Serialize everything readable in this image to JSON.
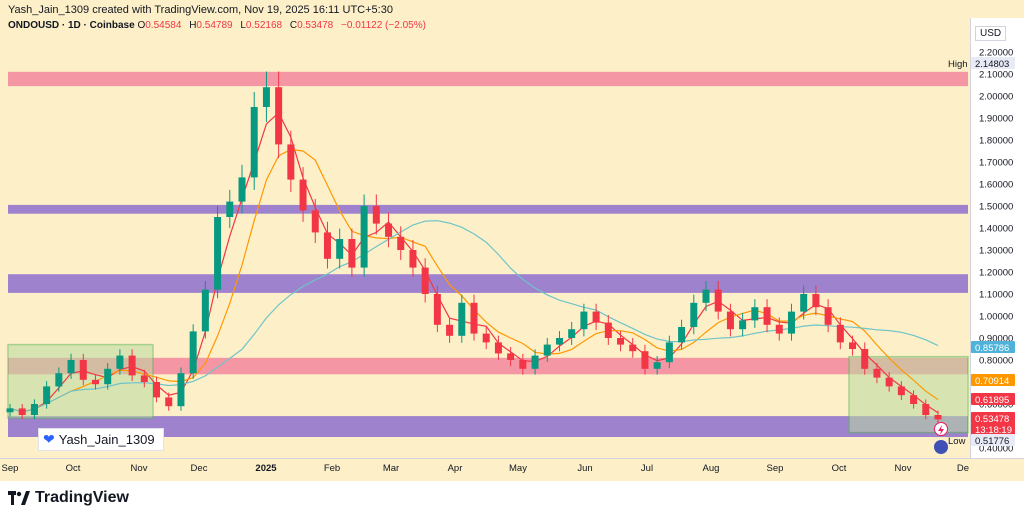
{
  "header": {
    "creator": "Yash_Jain_1309 created with TradingView.com, Nov 19, 2025 16:11 UTC+5:30",
    "symbol": "ONDOUSD · 1D · Coinbase",
    "o_label": "O",
    "o_value": "0.54584",
    "h_label": "H",
    "h_value": "0.54789",
    "l_label": "L",
    "l_value": "0.52168",
    "c_label": "C",
    "c_value": "0.53478",
    "change": "−0.01122 (−2.05%)"
  },
  "axis": {
    "currency": "USD",
    "high_label": "High",
    "low_label": "Low"
  },
  "watermark": "Yash_Jain_1309",
  "brand": "TradingView",
  "colors": {
    "up": "#089981",
    "down": "#f23645",
    "pink_zone": "#f48ca0",
    "purple_zone": "#9575cd",
    "green_box": "#c5e3a8",
    "background": "#fdf0c8"
  },
  "chart_data": {
    "type": "candlestick",
    "symbol": "ONDOUSD",
    "timeframe": "1D",
    "exchange": "Coinbase",
    "x_ticks": [
      "Sep",
      "Oct",
      "Nov",
      "Dec",
      "2025",
      "Feb",
      "Mar",
      "Apr",
      "May",
      "Jun",
      "Jul",
      "Aug",
      "Sep",
      "Oct",
      "Nov",
      "De"
    ],
    "y_ticks": [
      "2.20000",
      "2.10000",
      "2.00000",
      "1.90000",
      "1.80000",
      "1.70000",
      "1.60000",
      "1.50000",
      "1.40000",
      "1.30000",
      "1.20000",
      "1.10000",
      "1.00000",
      "0.90000",
      "0.80000",
      "0.70000",
      "0.60000",
      "0.50000",
      "0.40000"
    ],
    "ylim": [
      0.4,
      2.25
    ],
    "price_labels": [
      {
        "value": "2.14803",
        "note": "High",
        "color": "#e8eaf6"
      },
      {
        "value": "0.85786",
        "color": "#4fb3d9"
      },
      {
        "value": "0.70914",
        "color": "#ff9800"
      },
      {
        "value": "0.61895",
        "color": "#f23645"
      },
      {
        "value": "0.53478",
        "color": "#f23645"
      },
      {
        "value": "13:18:19",
        "color": "#f23645"
      },
      {
        "value": "0.51776",
        "note": "Low",
        "color": "#e8eaf6"
      }
    ],
    "zones": [
      {
        "type": "resistance",
        "from": 2.045,
        "to": 2.11,
        "color": "#f48ca0"
      },
      {
        "type": "resistance",
        "from": 1.465,
        "to": 1.505,
        "color": "#9575cd"
      },
      {
        "type": "resistance",
        "from": 1.105,
        "to": 1.19,
        "color": "#9575cd"
      },
      {
        "type": "support",
        "from": 0.735,
        "to": 0.81,
        "color": "#f48ca0"
      },
      {
        "type": "support",
        "from": 0.45,
        "to": 0.545,
        "color": "#9575cd"
      }
    ],
    "close_series": [
      0.58,
      0.55,
      0.6,
      0.68,
      0.74,
      0.8,
      0.71,
      0.69,
      0.76,
      0.82,
      0.73,
      0.7,
      0.63,
      0.59,
      0.74,
      0.93,
      1.12,
      1.45,
      1.52,
      1.63,
      1.95,
      2.04,
      1.78,
      1.62,
      1.48,
      1.38,
      1.26,
      1.35,
      1.22,
      1.5,
      1.42,
      1.36,
      1.3,
      1.22,
      1.1,
      0.96,
      0.91,
      1.06,
      0.92,
      0.88,
      0.83,
      0.8,
      0.76,
      0.82,
      0.87,
      0.9,
      0.94,
      1.02,
      0.97,
      0.9,
      0.87,
      0.84,
      0.76,
      0.79,
      0.88,
      0.95,
      1.06,
      1.12,
      1.02,
      0.94,
      0.98,
      1.04,
      0.96,
      0.92,
      1.02,
      1.1,
      1.04,
      0.96,
      0.88,
      0.85,
      0.76,
      0.72,
      0.68,
      0.64,
      0.6,
      0.55,
      0.53
    ]
  }
}
